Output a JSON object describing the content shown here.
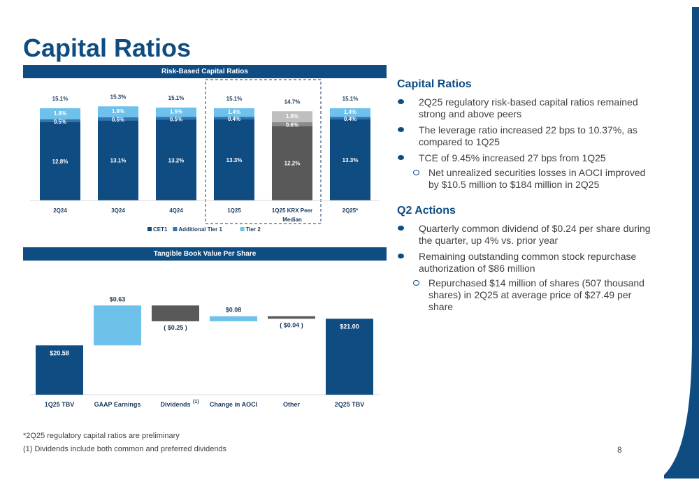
{
  "colors": {
    "navy": "#0f4c81",
    "dark": "#1a3a5c",
    "light_blue": "#6ec1ea",
    "mid_blue": "#2e75b6",
    "gray": "#595959",
    "gray_mid": "#8c8c8c",
    "gray_light": "#bfbfbf"
  },
  "title": "Capital Ratios",
  "page_number": "8",
  "chart_data": [
    {
      "type": "bar",
      "stacked": true,
      "title": "Risk-Based Capital Ratios",
      "categories": [
        "2Q24",
        "3Q24",
        "4Q24",
        "1Q25",
        "1Q25 KRX Peer Median",
        "2Q25*"
      ],
      "category_labels": [
        [
          "2Q24"
        ],
        [
          "3Q24"
        ],
        [
          "4Q24"
        ],
        [
          "1Q25"
        ],
        [
          "1Q25 KRX Peer",
          "Median"
        ],
        [
          "2Q25*"
        ]
      ],
      "series": [
        {
          "name": "CET1",
          "values": [
            12.8,
            13.1,
            13.2,
            13.3,
            12.2,
            13.3
          ],
          "labels": [
            "12.8%",
            "13.1%",
            "13.2%",
            "13.3%",
            "12.2%",
            "13.3%"
          ]
        },
        {
          "name": "Additional Tier 1",
          "values": [
            0.5,
            0.5,
            0.5,
            0.4,
            0.6,
            0.4
          ],
          "labels": [
            "0.5%",
            "0.5%",
            "0.5%",
            "0.4%",
            "0.6%",
            "0.4%"
          ]
        },
        {
          "name": "Tier 2",
          "values": [
            1.8,
            1.8,
            1.5,
            1.4,
            1.8,
            1.4
          ],
          "labels": [
            "1.8%",
            "1.8%",
            "1.5%",
            "1.4%",
            "1.8%",
            "1.4%"
          ]
        }
      ],
      "totals": [
        "15.1%",
        "15.3%",
        "15.1%",
        "15.1%",
        "14.7%",
        "15.1%"
      ],
      "highlight_peer_index": 4,
      "dashed_box_categories": [
        "1Q25",
        "1Q25 KRX Peer Median"
      ],
      "legend": [
        "CET1",
        "Additional Tier 1",
        "Tier 2"
      ],
      "legend_position": "bottom"
    },
    {
      "type": "waterfall",
      "title": "Tangible Book Value Per Share",
      "categories": [
        "1Q25 TBV",
        "GAAP Earnings",
        "Dividends",
        "Change in AOCI",
        "Other",
        "2Q25 TBV"
      ],
      "values": [
        20.58,
        0.63,
        -0.25,
        0.08,
        -0.04,
        21.0
      ],
      "kinds": [
        "total",
        "increase",
        "decrease",
        "increase",
        "decrease",
        "total"
      ],
      "labels": [
        "$20.58",
        "$0.63",
        "( $0.25 )",
        "$0.08",
        "( $0.04 )",
        "$21.00"
      ],
      "footnote_marker_category": "Dividends",
      "footnote_marker": "(1)"
    }
  ],
  "sidebar": {
    "heading1": "Capital Ratios",
    "bullets1": [
      {
        "text": "2Q25 regulatory risk-based capital ratios remained strong and above peers",
        "level": 1
      },
      {
        "text": "The leverage ratio increased 22 bps to 10.37%, as compared to 1Q25",
        "level": 1
      },
      {
        "text": "TCE of 9.45% increased 27 bps from 1Q25",
        "level": 1
      },
      {
        "text": "Net unrealized securities losses in AOCI improved by $10.5 million to $184 million in 2Q25",
        "level": 2
      }
    ],
    "heading2": "Q2 Actions",
    "bullets2": [
      {
        "text": "Quarterly common dividend of $0.24 per share during the quarter, up 4% vs. prior year",
        "level": 1
      },
      {
        "text": "Remaining outstanding common stock repurchase authorization of $86 million",
        "level": 1
      },
      {
        "text": "Repurchased $14 million of shares (507 thousand shares) in 2Q25 at average price of $27.49 per share",
        "level": 2
      }
    ]
  },
  "footnotes": {
    "note1": "*2Q25 regulatory capital ratios are preliminary",
    "note2": " (1) Dividends include both common and preferred dividends"
  }
}
